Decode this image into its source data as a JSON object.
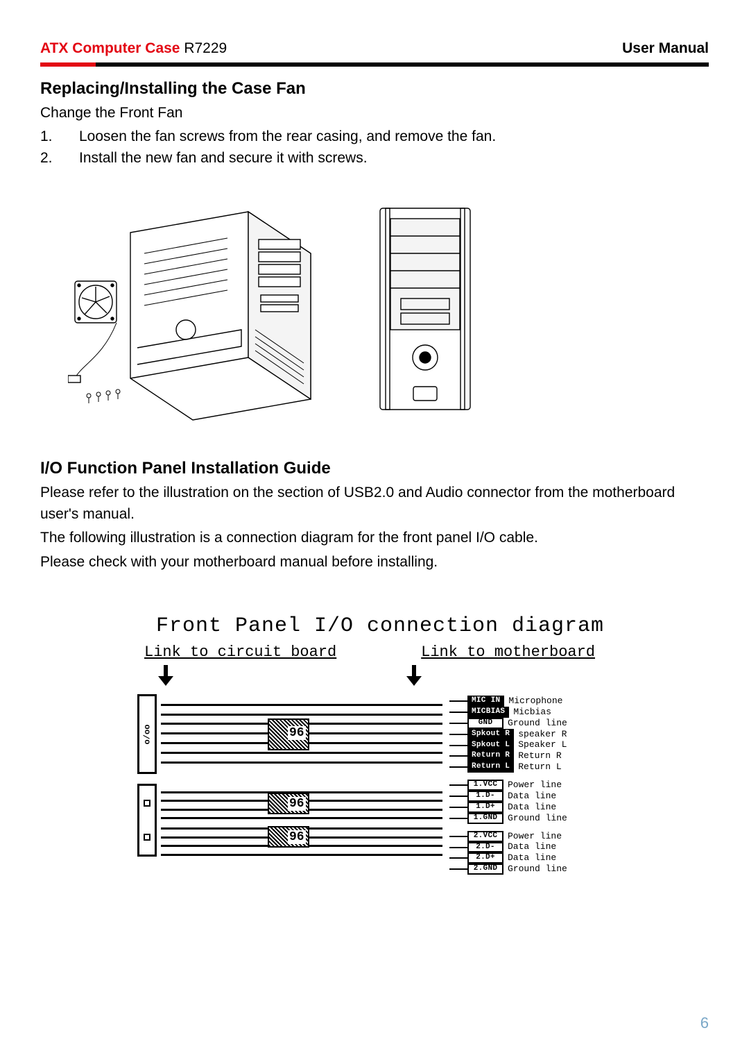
{
  "header": {
    "brand": "ATX Computer Case",
    "model": "R7229",
    "right": "User Manual",
    "accent_color": "#e30613"
  },
  "section1": {
    "title": "Replacing/Installing the Case Fan",
    "subtitle": "Change the Front Fan",
    "steps": [
      {
        "num": "1.",
        "text": "Loosen the fan screws from the rear casing, and remove the fan."
      },
      {
        "num": "2.",
        "text": "Install the new fan and secure it with screws."
      }
    ]
  },
  "section2": {
    "title": "I/O Function Panel Installation Guide",
    "p1": "Please refer to the illustration on the section of USB2.0 and Audio connector from the motherboard user's manual.",
    "p2": "The following illustration is a connection diagram for the front panel I/O cable.",
    "p3": "Please check with your motherboard manual before installing."
  },
  "diagram": {
    "title": "Front Panel I/O connection diagram",
    "left_label": "Link to circuit board",
    "right_label": "Link to motherboard",
    "audio_tag": "96",
    "usb_tag1": "96",
    "usb_tag2": "96",
    "audio_port": "o/oo",
    "pins_audio": [
      {
        "box": "MIC IN",
        "desc": "Microphone",
        "style": "black"
      },
      {
        "box": "MICBIAS",
        "desc": "Micbias",
        "style": "black"
      },
      {
        "box": "GND",
        "desc": "Ground line",
        "style": "white"
      },
      {
        "box": "Spkout R",
        "desc": "speaker R",
        "style": "black"
      },
      {
        "box": "Spkout L",
        "desc": "Speaker L",
        "style": "black"
      },
      {
        "box": "Return R",
        "desc": "Return R",
        "style": "black"
      },
      {
        "box": "Return L",
        "desc": "Return L",
        "style": "black"
      }
    ],
    "pins_usb1": [
      {
        "box": "1.VCC",
        "desc": "Power line",
        "style": "white"
      },
      {
        "box": "1.D-",
        "desc": "Data line",
        "style": "white"
      },
      {
        "box": "1.D+",
        "desc": "Data line",
        "style": "white"
      },
      {
        "box": "1.GND",
        "desc": "Ground line",
        "style": "white"
      }
    ],
    "pins_usb2": [
      {
        "box": "2.VCC",
        "desc": "Power line",
        "style": "white"
      },
      {
        "box": "2.D-",
        "desc": "Data line",
        "style": "white"
      },
      {
        "box": "2.D+",
        "desc": "Data line",
        "style": "white"
      },
      {
        "box": "2.GND",
        "desc": "Ground line",
        "style": "white"
      }
    ]
  },
  "page_number": "6"
}
